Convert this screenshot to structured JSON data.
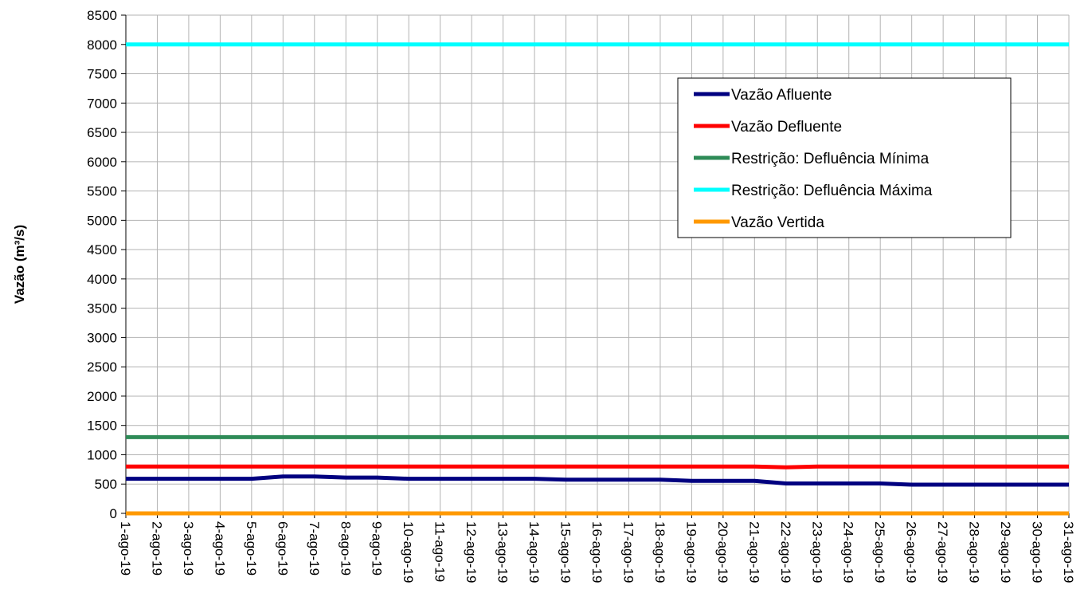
{
  "chart_data": {
    "type": "line",
    "ylabel": "Vazão (m³/s)",
    "xlabel": "",
    "ylim": [
      0,
      8500
    ],
    "y_ticks": [
      0,
      500,
      1000,
      1500,
      2000,
      2500,
      3000,
      3500,
      4000,
      4500,
      5000,
      5500,
      6000,
      6500,
      7000,
      7500,
      8000,
      8500
    ],
    "grid": true,
    "legend_position": "top-right",
    "categories": [
      "1-ago-19",
      "2-ago-19",
      "3-ago-19",
      "4-ago-19",
      "5-ago-19",
      "6-ago-19",
      "7-ago-19",
      "8-ago-19",
      "9-ago-19",
      "10-ago-19",
      "11-ago-19",
      "12-ago-19",
      "13-ago-19",
      "14-ago-19",
      "15-ago-19",
      "16-ago-19",
      "17-ago-19",
      "18-ago-19",
      "19-ago-19",
      "20-ago-19",
      "21-ago-19",
      "22-ago-19",
      "23-ago-19",
      "24-ago-19",
      "25-ago-19",
      "26-ago-19",
      "27-ago-19",
      "28-ago-19",
      "29-ago-19",
      "30-ago-19",
      "31-ago-19"
    ],
    "series": [
      {
        "name": "Vazão Afluente",
        "color": "#000080",
        "values": [
          590,
          590,
          590,
          590,
          590,
          630,
          630,
          610,
          610,
          590,
          590,
          590,
          590,
          590,
          575,
          575,
          575,
          575,
          555,
          555,
          555,
          510,
          510,
          510,
          510,
          490,
          490,
          490,
          490,
          490,
          490
        ]
      },
      {
        "name": "Vazão Defluente",
        "color": "#ff0000",
        "values": [
          800,
          800,
          800,
          800,
          800,
          800,
          800,
          800,
          800,
          800,
          800,
          800,
          800,
          800,
          800,
          800,
          800,
          800,
          800,
          800,
          800,
          785,
          800,
          800,
          800,
          800,
          800,
          800,
          800,
          800,
          800
        ]
      },
      {
        "name": "Restrição: Defluência Mínima",
        "color": "#2e8b57",
        "values": [
          1300,
          1300,
          1300,
          1300,
          1300,
          1300,
          1300,
          1300,
          1300,
          1300,
          1300,
          1300,
          1300,
          1300,
          1300,
          1300,
          1300,
          1300,
          1300,
          1300,
          1300,
          1300,
          1300,
          1300,
          1300,
          1300,
          1300,
          1300,
          1300,
          1300,
          1300
        ]
      },
      {
        "name": "Restrição: Defluência Máxima",
        "color": "#00ffff",
        "values": [
          8000,
          8000,
          8000,
          8000,
          8000,
          8000,
          8000,
          8000,
          8000,
          8000,
          8000,
          8000,
          8000,
          8000,
          8000,
          8000,
          8000,
          8000,
          8000,
          8000,
          8000,
          8000,
          8000,
          8000,
          8000,
          8000,
          8000,
          8000,
          8000,
          8000,
          8000
        ]
      },
      {
        "name": "Vazão Vertida",
        "color": "#ff9900",
        "values": [
          0,
          0,
          0,
          0,
          0,
          0,
          0,
          0,
          0,
          0,
          0,
          0,
          0,
          0,
          0,
          0,
          0,
          0,
          0,
          0,
          0,
          0,
          0,
          0,
          0,
          0,
          0,
          0,
          0,
          0,
          0
        ]
      }
    ]
  }
}
